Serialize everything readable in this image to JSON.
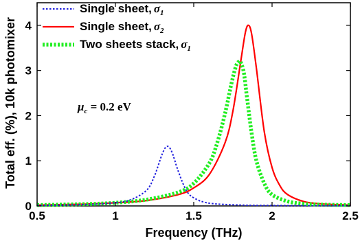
{
  "chart_data": {
    "type": "line",
    "xlabel": "Frequency (THz)",
    "ylabel": "Total eff. (%), 10k photomixer",
    "xlim": [
      0.5,
      2.5
    ],
    "ylim": [
      0,
      4.5
    ],
    "xticks": [
      "0.5",
      "1",
      "1.5",
      "2",
      "2.5"
    ],
    "yticks": [
      "0",
      "1",
      "2",
      "3",
      "4"
    ],
    "grid": false,
    "legend_position": "top-left",
    "annotation": {
      "symbol": "μ",
      "subscript": "c",
      "text": " = 0.2  eV",
      "x": 1.0,
      "y": 3.1
    },
    "series": [
      {
        "name_main": "Single sheet,",
        "name_sym": "σ",
        "name_sub": "1",
        "color": "#1f1fdd",
        "style": "dotted",
        "x": [
          0.5,
          0.8,
          1.0,
          1.1,
          1.2,
          1.25,
          1.3,
          1.33,
          1.36,
          1.4,
          1.45,
          1.5,
          1.6,
          1.8,
          2.0,
          2.5
        ],
        "y": [
          0.01,
          0.03,
          0.07,
          0.14,
          0.35,
          0.67,
          1.16,
          1.32,
          1.2,
          0.78,
          0.36,
          0.18,
          0.06,
          0.02,
          0.01,
          0.005
        ]
      },
      {
        "name_main": "Single sheet,",
        "name_sym": "σ",
        "name_sub": "2",
        "color": "#ff0000",
        "style": "solid",
        "x": [
          0.5,
          0.8,
          1.0,
          1.2,
          1.4,
          1.5,
          1.6,
          1.7,
          1.75,
          1.8,
          1.83,
          1.85,
          1.87,
          1.9,
          1.95,
          2.0,
          2.05,
          2.1,
          2.2,
          2.3,
          2.4,
          2.5
        ],
        "y": [
          0.02,
          0.04,
          0.07,
          0.12,
          0.25,
          0.4,
          0.7,
          1.4,
          2.1,
          3.2,
          3.85,
          4.0,
          3.8,
          3.05,
          1.65,
          0.85,
          0.45,
          0.25,
          0.1,
          0.05,
          0.03,
          0.02
        ]
      },
      {
        "name_main": "Two sheets stack,",
        "name_sym": "σ",
        "name_sub": "1",
        "color": "#22ee22",
        "style": "thick-dotted",
        "x": [
          0.5,
          0.8,
          1.0,
          1.2,
          1.4,
          1.5,
          1.6,
          1.65,
          1.7,
          1.74,
          1.77,
          1.79,
          1.8,
          1.82,
          1.84,
          1.87,
          1.9,
          1.95,
          2.0,
          2.1,
          2.2,
          2.3,
          2.5
        ],
        "y": [
          0.02,
          0.04,
          0.07,
          0.14,
          0.3,
          0.5,
          0.95,
          1.4,
          2.05,
          2.7,
          3.1,
          3.2,
          3.18,
          2.95,
          2.4,
          1.6,
          1.0,
          0.5,
          0.25,
          0.1,
          0.05,
          0.03,
          0.02
        ]
      }
    ]
  }
}
